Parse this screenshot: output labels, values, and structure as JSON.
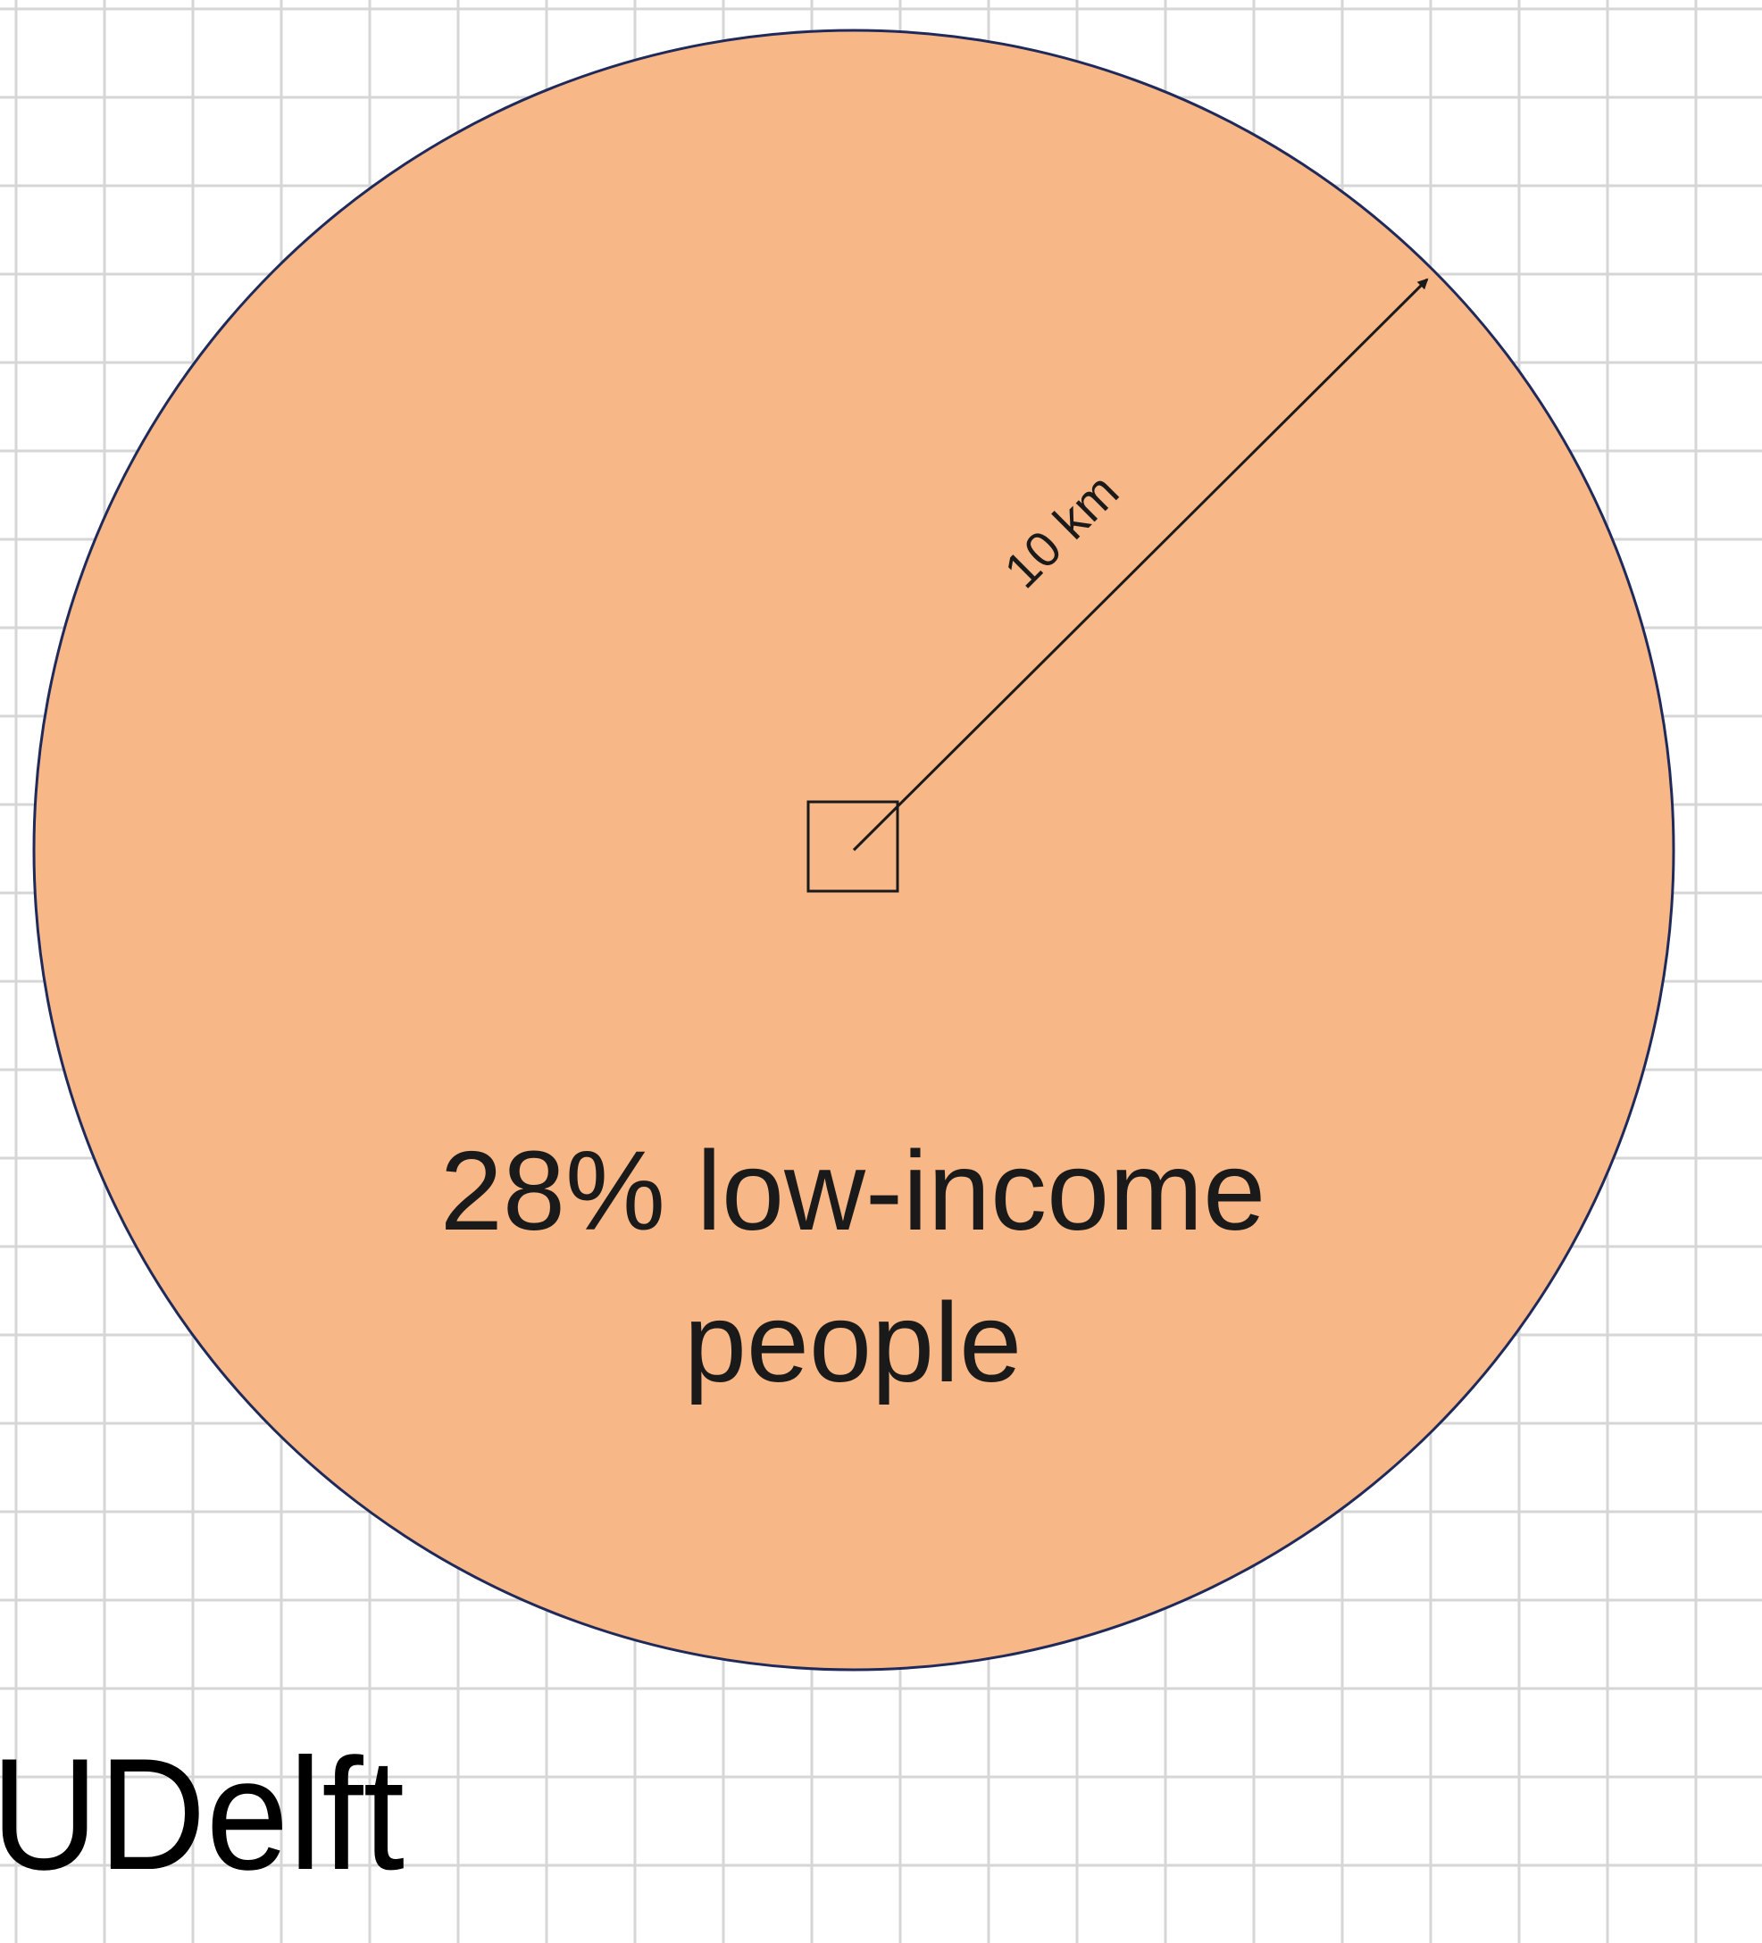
{
  "colors": {
    "background": "#ffffff",
    "grid_line": "#d6d6d6",
    "circle_fill": "#f7b786",
    "circle_stroke": "#1f2a5a",
    "ink": "#1a1a1a"
  },
  "diagram": {
    "radius_label": "10 km",
    "caption_line1": "28% low-income",
    "caption_line2": "people"
  },
  "logo": {
    "text": "TUDelft"
  }
}
